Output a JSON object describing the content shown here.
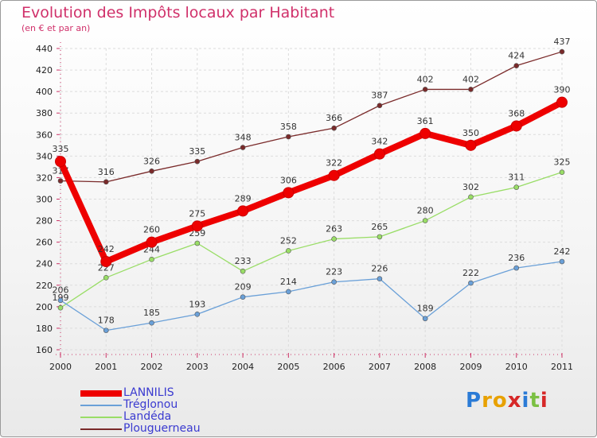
{
  "chart_data": {
    "type": "line",
    "title": "Evolution des Impôts locaux par Habitant",
    "subtitle": "(en € et par an)",
    "x": [
      "2000",
      "2001",
      "2002",
      "2003",
      "2004",
      "2005",
      "2006",
      "2007",
      "2008",
      "2009",
      "2010",
      "2011"
    ],
    "ylim": [
      160,
      440
    ],
    "yticks": [
      160,
      180,
      200,
      220,
      240,
      260,
      280,
      300,
      320,
      340,
      360,
      380,
      400,
      420,
      440
    ],
    "grid": true,
    "series": [
      {
        "name": "Plouguerneau",
        "color": "#7a2a2a",
        "values": [
          317,
          316,
          326,
          335,
          348,
          358,
          366,
          387,
          402,
          402,
          424,
          437
        ]
      },
      {
        "name": "Landéda",
        "color": "#99dd66",
        "values": [
          199,
          227,
          244,
          259,
          233,
          252,
          263,
          265,
          280,
          302,
          311,
          325
        ]
      },
      {
        "name": "Tréglonou",
        "color": "#6aa0d8",
        "values": [
          206,
          178,
          185,
          193,
          209,
          214,
          223,
          226,
          189,
          222,
          236,
          242
        ]
      },
      {
        "name": "LANNILIS",
        "color": "#ee0000",
        "values": [
          335,
          242,
          260,
          275,
          289,
          306,
          322,
          342,
          361,
          350,
          368,
          390
        ]
      }
    ],
    "legend": [
      "LANNILIS",
      "Tréglonou",
      "Landéda",
      "Plouguerneau"
    ]
  },
  "brand": {
    "letters": [
      "P",
      "r",
      "o",
      "x",
      "i",
      "t",
      "i"
    ],
    "colors": [
      "#2b7bd6",
      "#e8a100",
      "#e8a100",
      "#d62828",
      "#2b7bd6",
      "#7bc043",
      "#d62828"
    ]
  }
}
